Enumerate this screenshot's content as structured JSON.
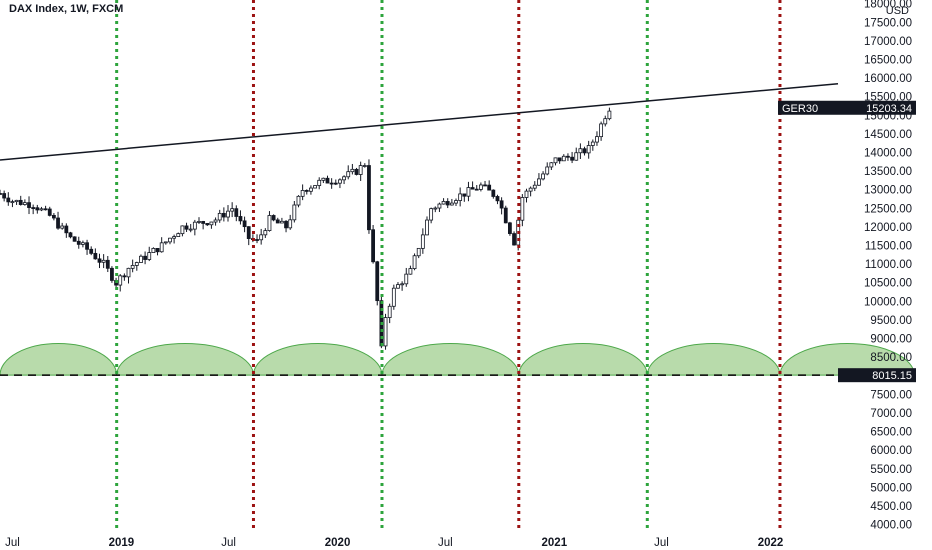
{
  "chart_data": {
    "type": "candlestick",
    "title": "DAX Index, 1W, FXCM",
    "currency": "USD",
    "y_axis_ticks": [
      4000,
      4500,
      5000,
      5500,
      6000,
      6500,
      7000,
      7500,
      8000,
      8500,
      9000,
      9500,
      10000,
      10500,
      11000,
      11500,
      12000,
      12500,
      13000,
      13500,
      14000,
      14500,
      15000,
      15500,
      16000,
      16500,
      17000,
      17500,
      18000
    ],
    "y_axis_tick_labels": [
      "4000.00",
      "4500.00",
      "5000.00",
      "5500.00",
      "6000.00",
      "6500.00",
      "7000.00",
      "7500.00",
      "8000.00",
      "8500.00",
      "9000.00",
      "9500.00",
      "10000.00",
      "10500.00",
      "11000.00",
      "11500.00",
      "12000.00",
      "12500.00",
      "13000.00",
      "13500.00",
      "14000.00",
      "14500.00",
      "15000.00",
      "15500.00",
      "16000.00",
      "16500.00",
      "17000.00",
      "17500.00",
      "18000.00"
    ],
    "y_axis_position": "right",
    "ylim": [
      3800,
      18100
    ],
    "x_axis_labels": [
      {
        "text": "Jul",
        "date": "2018-07-01",
        "bold": false
      },
      {
        "text": "2019",
        "date": "2019-01-01",
        "bold": true
      },
      {
        "text": "Jul",
        "date": "2019-07-01",
        "bold": false
      },
      {
        "text": "2020",
        "date": "2020-01-01",
        "bold": true
      },
      {
        "text": "Jul",
        "date": "2020-07-01",
        "bold": false
      },
      {
        "text": "2021",
        "date": "2021-01-01",
        "bold": true
      },
      {
        "text": "Jul",
        "date": "2021-07-01",
        "bold": false
      },
      {
        "text": "2022",
        "date": "2022-01-01",
        "bold": true
      }
    ],
    "xlim": [
      "2018-06-10",
      "2022-04-25"
    ],
    "price_path": [
      [
        "2018-06-10",
        12900
      ],
      [
        "2018-07-01",
        12700
      ],
      [
        "2018-08-05",
        12600
      ],
      [
        "2018-09-02",
        12300
      ],
      [
        "2018-10-07",
        11700
      ],
      [
        "2018-11-04",
        11400
      ],
      [
        "2018-12-02",
        11000
      ],
      [
        "2018-12-23",
        10500
      ],
      [
        "2019-01-13",
        10900
      ],
      [
        "2019-02-10",
        11200
      ],
      [
        "2019-03-10",
        11500
      ],
      [
        "2019-04-14",
        12000
      ],
      [
        "2019-05-12",
        12100
      ],
      [
        "2019-06-09",
        12200
      ],
      [
        "2019-07-07",
        12500
      ],
      [
        "2019-08-04",
        11700
      ],
      [
        "2019-08-18",
        11600
      ],
      [
        "2019-09-08",
        12200
      ],
      [
        "2019-10-06",
        12000
      ],
      [
        "2019-11-03",
        13000
      ],
      [
        "2019-12-01",
        13200
      ],
      [
        "2020-01-05",
        13300
      ],
      [
        "2020-02-02",
        13500
      ],
      [
        "2020-02-16",
        13700
      ],
      [
        "2020-02-23",
        12000
      ],
      [
        "2020-03-08",
        10000
      ],
      [
        "2020-03-15",
        8700
      ],
      [
        "2020-03-22",
        9600
      ],
      [
        "2020-04-05",
        10300
      ],
      [
        "2020-05-03",
        10800
      ],
      [
        "2020-06-07",
        12500
      ],
      [
        "2020-07-05",
        12700
      ],
      [
        "2020-08-02",
        12900
      ],
      [
        "2020-08-30",
        13100
      ],
      [
        "2020-09-27",
        12800
      ],
      [
        "2020-10-25",
        11600
      ],
      [
        "2020-11-08",
        12800
      ],
      [
        "2020-12-06",
        13300
      ],
      [
        "2021-01-03",
        13800
      ],
      [
        "2021-01-31",
        13900
      ],
      [
        "2021-02-28",
        14100
      ],
      [
        "2021-03-14",
        14500
      ],
      [
        "2021-03-28",
        15000
      ],
      [
        "2021-04-04",
        15203.34
      ]
    ],
    "last_value": 15203.34,
    "last_label": "GER30",
    "last_value_label": "15203.34",
    "trendline": {
      "start": [
        "2018-06-10",
        13800
      ],
      "end": [
        "2022-04-25",
        15850
      ]
    },
    "horizontal_line": {
      "value": 8015.15,
      "label": "8015.15"
    },
    "cycle_arc_height": 850,
    "cycle_lines": [
      {
        "date": "2018-12-24",
        "color": "#2da43c"
      },
      {
        "date": "2019-08-12",
        "color": "#9c1212"
      },
      {
        "date": "2020-03-16",
        "color": "#2da43c"
      },
      {
        "date": "2020-11-02",
        "color": "#9c1212"
      },
      {
        "date": "2021-06-07",
        "color": "#2da43c"
      },
      {
        "date": "2022-01-17",
        "color": "#9c1212"
      }
    ],
    "cycle_arcs": [
      [
        "2018-06-10",
        "2018-12-24"
      ],
      [
        "2018-12-24",
        "2019-08-12"
      ],
      [
        "2019-08-12",
        "2020-03-16"
      ],
      [
        "2020-03-16",
        "2020-11-02"
      ],
      [
        "2020-11-02",
        "2021-06-07"
      ],
      [
        "2021-06-07",
        "2022-01-17"
      ],
      [
        "2022-01-17",
        "2022-09-01"
      ]
    ],
    "colors": {
      "candle": "#131722",
      "trendline": "#131722",
      "arc_fill": "#b8dbab",
      "arc_stroke": "#4da84a",
      "axis_text": "#131722",
      "label_bg": "#131722",
      "label_text": "#ffffff"
    }
  }
}
